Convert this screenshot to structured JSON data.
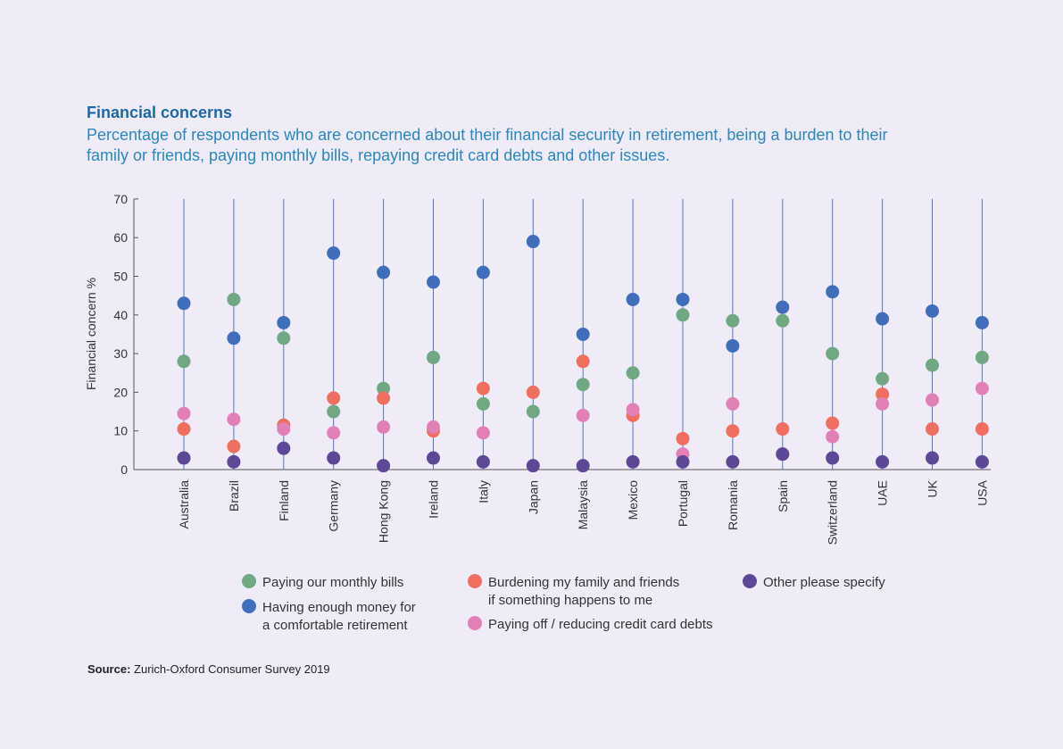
{
  "chart_data": {
    "type": "scatter",
    "title": "Financial concerns",
    "subtitle": "Percentage of respondents who are concerned about their financial security in retirement, being a burden to their family or friends, paying monthly bills, repaying credit card debts and other issues.",
    "ylabel": "Financial concern %",
    "ylim": [
      0,
      70
    ],
    "yticks": [
      0,
      10,
      20,
      30,
      40,
      50,
      60,
      70
    ],
    "grid": "vertical lines per category",
    "legend_position": "bottom",
    "categories": [
      "Australia",
      "Brazil",
      "Finland",
      "Germany",
      "Hong Kong",
      "Ireland",
      "Italy",
      "Japan",
      "Malaysia",
      "Mexico",
      "Portugal",
      "Romania",
      "Spain",
      "Switzerland",
      "UAE",
      "UK",
      "USA"
    ],
    "series": [
      {
        "name": "Paying our monthly bills",
        "color": "#6fa882",
        "values": [
          28,
          44,
          34,
          15,
          21,
          29,
          17,
          15,
          22,
          25,
          40,
          38.5,
          38.5,
          30,
          23.5,
          27,
          29
        ]
      },
      {
        "name": "Having enough money for\na comfortable retirement",
        "color": "#3f6fbc",
        "values": [
          43,
          34,
          38,
          56,
          51,
          48.5,
          51,
          59,
          35,
          44,
          44,
          32,
          42,
          46,
          39,
          41,
          38
        ]
      },
      {
        "name": "Burdening my family and friends\nif something happens to me",
        "color": "#ef6e5e",
        "values": [
          10.5,
          6,
          11.5,
          18.5,
          18.5,
          10,
          21,
          20,
          28,
          14,
          8,
          10,
          10.5,
          12,
          19.5,
          10.5,
          10.5
        ]
      },
      {
        "name": "Paying off / reducing credit card debts",
        "color": "#e27fb6",
        "values": [
          14.5,
          13,
          10.5,
          9.5,
          11,
          11,
          9.5,
          null,
          14,
          15.5,
          4,
          17,
          4,
          8.5,
          17,
          18,
          21
        ]
      },
      {
        "name": "Other please specify",
        "color": "#5d4797",
        "values": [
          3,
          2,
          5.5,
          3,
          1,
          3,
          2,
          1,
          1,
          2,
          2,
          2,
          4,
          3,
          2,
          3,
          2
        ]
      }
    ]
  },
  "source": {
    "label": "Source:",
    "text": " Zurich-Oxford Consumer Survey 2019"
  }
}
